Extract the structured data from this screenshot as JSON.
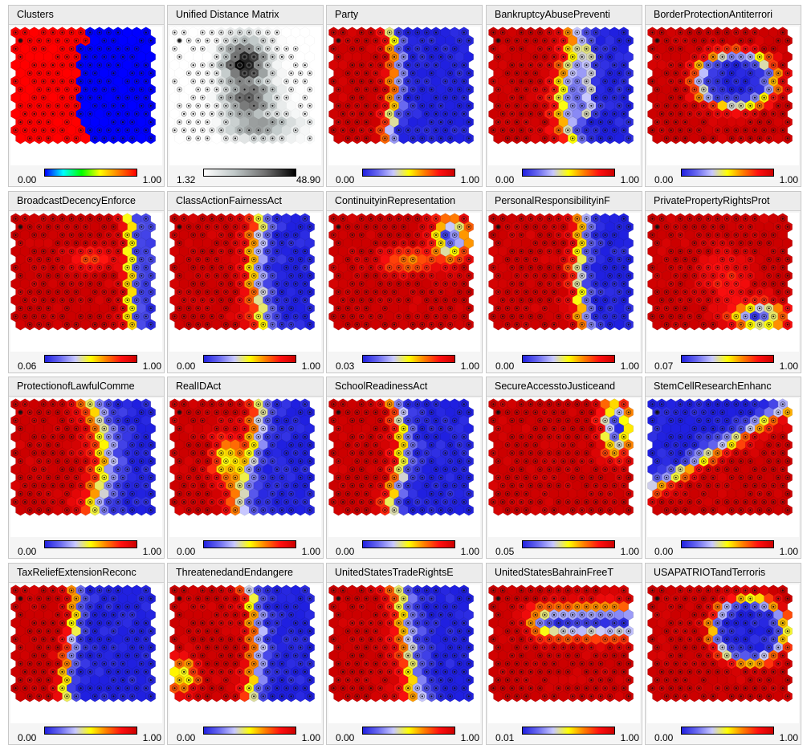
{
  "colors": {
    "rainbow": [
      "#0000ff",
      "#00ffff",
      "#00ff00",
      "#ffff00",
      "#ff8000",
      "#ff0000"
    ],
    "blue_yellow_red": [
      "#2020e0",
      "#6a6af0",
      "#c8c8ff",
      "#ffff00",
      "#ff8000",
      "#ff1010",
      "#cc0000"
    ],
    "distance": [
      "#ffffff",
      "#c0c8c8",
      "#707070",
      "#000000"
    ]
  },
  "panels": [
    {
      "title": "Clusters",
      "min": "0.00",
      "max": "1.00",
      "palette": "rainbow",
      "pattern": "clusters"
    },
    {
      "title": "Unified Distance Matrix",
      "min": "1.32",
      "max": "48.90",
      "palette": "distance",
      "pattern": "umatrix"
    },
    {
      "title": "Party",
      "min": "0.00",
      "max": "1.00",
      "palette": "blue_yellow_red",
      "pattern": "party"
    },
    {
      "title": "BankruptcyAbusePreventi",
      "min": "0.00",
      "max": "1.00",
      "palette": "blue_yellow_red",
      "pattern": "bankruptcy"
    },
    {
      "title": "BorderProtectionAntiterrori",
      "min": "0.00",
      "max": "1.00",
      "palette": "blue_yellow_red",
      "pattern": "border"
    },
    {
      "title": "BroadcastDecencyEnforce",
      "min": "0.06",
      "max": "1.00",
      "palette": "blue_yellow_red",
      "pattern": "broadcast"
    },
    {
      "title": "ClassActionFairnessAct",
      "min": "0.00",
      "max": "1.00",
      "palette": "blue_yellow_red",
      "pattern": "classaction"
    },
    {
      "title": "ContinuityinRepresentation",
      "min": "0.03",
      "max": "1.00",
      "palette": "blue_yellow_red",
      "pattern": "continuity"
    },
    {
      "title": "PersonalResponsibilityinF",
      "min": "0.00",
      "max": "1.00",
      "palette": "blue_yellow_red",
      "pattern": "personal"
    },
    {
      "title": "PrivatePropertyRightsProt",
      "min": "0.07",
      "max": "1.00",
      "palette": "blue_yellow_red",
      "pattern": "private"
    },
    {
      "title": "ProtectionofLawfulComme",
      "min": "0.00",
      "max": "1.00",
      "palette": "blue_yellow_red",
      "pattern": "protection"
    },
    {
      "title": "RealIDAct",
      "min": "0.00",
      "max": "1.00",
      "palette": "blue_yellow_red",
      "pattern": "realid"
    },
    {
      "title": "SchoolReadinessAct",
      "min": "0.00",
      "max": "1.00",
      "palette": "blue_yellow_red",
      "pattern": "school"
    },
    {
      "title": "SecureAccesstoJusticeand",
      "min": "0.05",
      "max": "1.00",
      "palette": "blue_yellow_red",
      "pattern": "secure"
    },
    {
      "title": "StemCellResearchEnhanc",
      "min": "0.00",
      "max": "1.00",
      "palette": "blue_yellow_red",
      "pattern": "stemcell"
    },
    {
      "title": "TaxReliefExtensionReconc",
      "min": "0.00",
      "max": "1.00",
      "palette": "blue_yellow_red",
      "pattern": "taxrelief"
    },
    {
      "title": "ThreatenedandEndangere",
      "min": "0.00",
      "max": "1.00",
      "palette": "blue_yellow_red",
      "pattern": "threatened"
    },
    {
      "title": "UnitedStatesTradeRightsE",
      "min": "0.00",
      "max": "1.00",
      "palette": "blue_yellow_red",
      "pattern": "trade"
    },
    {
      "title": "UnitedStatesBahrainFreeT",
      "min": "0.01",
      "max": "1.00",
      "palette": "blue_yellow_red",
      "pattern": "bahrain"
    },
    {
      "title": "USAPATRIOTandTerroris",
      "min": "0.00",
      "max": "1.00",
      "palette": "blue_yellow_red",
      "pattern": "patriot"
    }
  ]
}
